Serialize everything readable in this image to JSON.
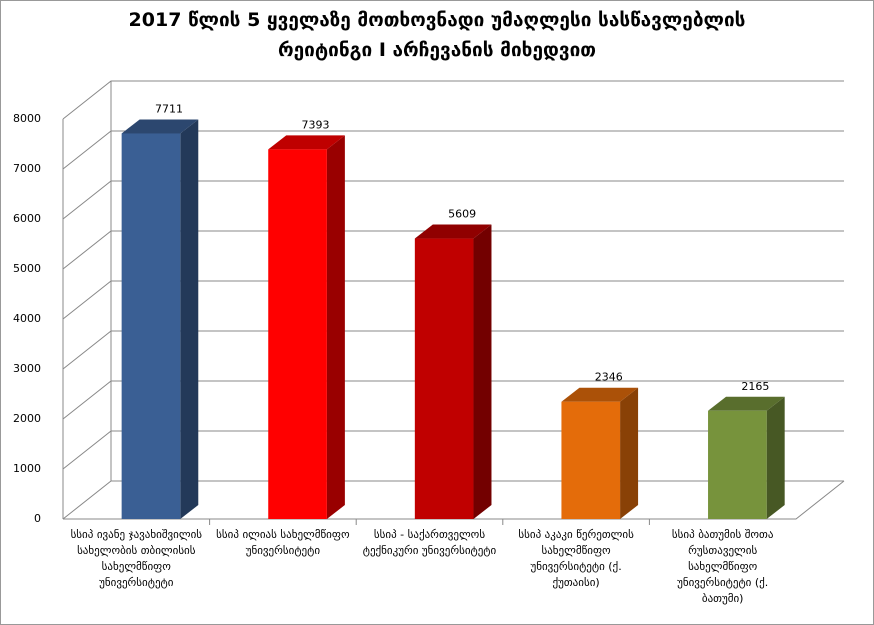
{
  "chart_data": {
    "type": "bar3d",
    "title": [
      "2017 წლის 5 ყველაზე მოთხოვნადი უმაღლესი სასწავლებლის",
      "რეიტინგი I არჩევანის მიხედვით"
    ],
    "categories": [
      "სსიპ ივანე ჯავახიშვილის სახელობის თბილისის სახელმწიფო უნივერსიტეტი",
      "სსიპ ილიას სახელმწიფო უნივერსიტეტი",
      "სსიპ - საქართველოს ტექნიკური უნივერსიტეტი",
      "სსიპ აკაკი წერეთლის სახელმწიფო უნივერსიტეტი (ქ. ქუთაისი)",
      "სსიპ ბათუმის შოთა რუსთაველის სახელმწიფო უნივერსიტეტი (ქ. ბათუმი)"
    ],
    "values": [
      7711,
      7393,
      5609,
      2346,
      2165
    ],
    "colors": [
      "#3a5f94",
      "#ff0000",
      "#c00000",
      "#e46c0a",
      "#77933c"
    ],
    "ylim": [
      0,
      8000
    ],
    "yticks": [
      0,
      1000,
      2000,
      3000,
      4000,
      5000,
      6000,
      7000,
      8000
    ],
    "grid": true
  }
}
